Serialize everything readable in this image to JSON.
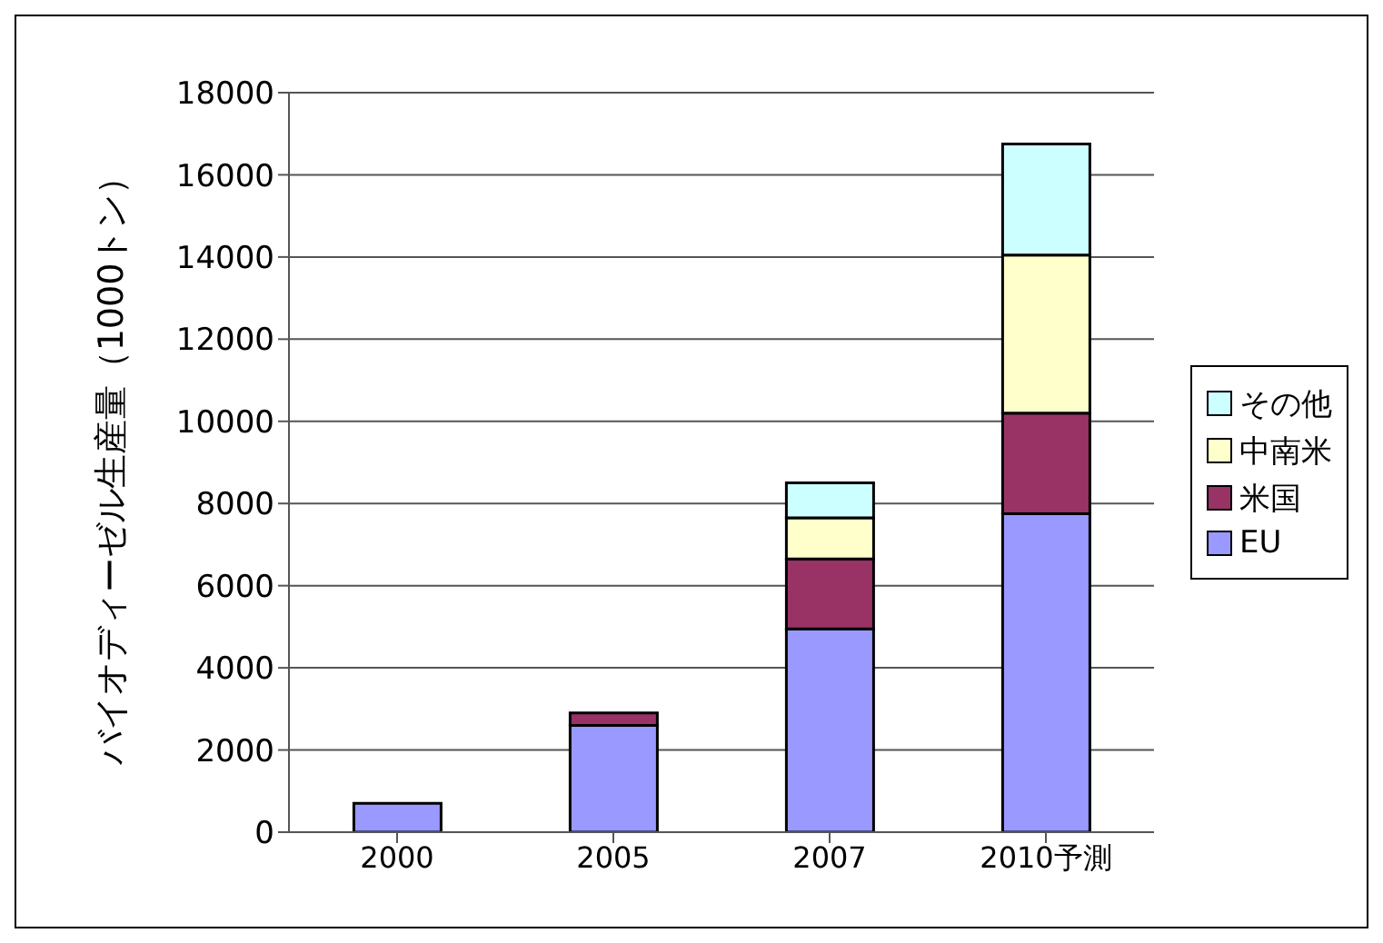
{
  "chart_data": {
    "type": "bar",
    "stacked": true,
    "ylabel": "バイオディーゼル生産量（1000トン）",
    "categories": [
      "2000",
      "2005",
      "2007",
      "2010予測"
    ],
    "series": [
      {
        "name": "EU",
        "color": "#9999ff",
        "values": [
          700,
          2600,
          4950,
          7750
        ]
      },
      {
        "name": "米国",
        "color": "#993366",
        "values": [
          0,
          300,
          1700,
          2450
        ]
      },
      {
        "name": "中南米",
        "color": "#ffffcc",
        "values": [
          0,
          0,
          1000,
          3850
        ]
      },
      {
        "name": "その他",
        "color": "#ccffff",
        "values": [
          0,
          0,
          850,
          2700
        ]
      }
    ],
    "ylim": [
      0,
      18000
    ],
    "yticks": [
      0,
      2000,
      4000,
      6000,
      8000,
      10000,
      12000,
      14000,
      16000,
      18000
    ],
    "grid": "y",
    "legend": "right"
  }
}
